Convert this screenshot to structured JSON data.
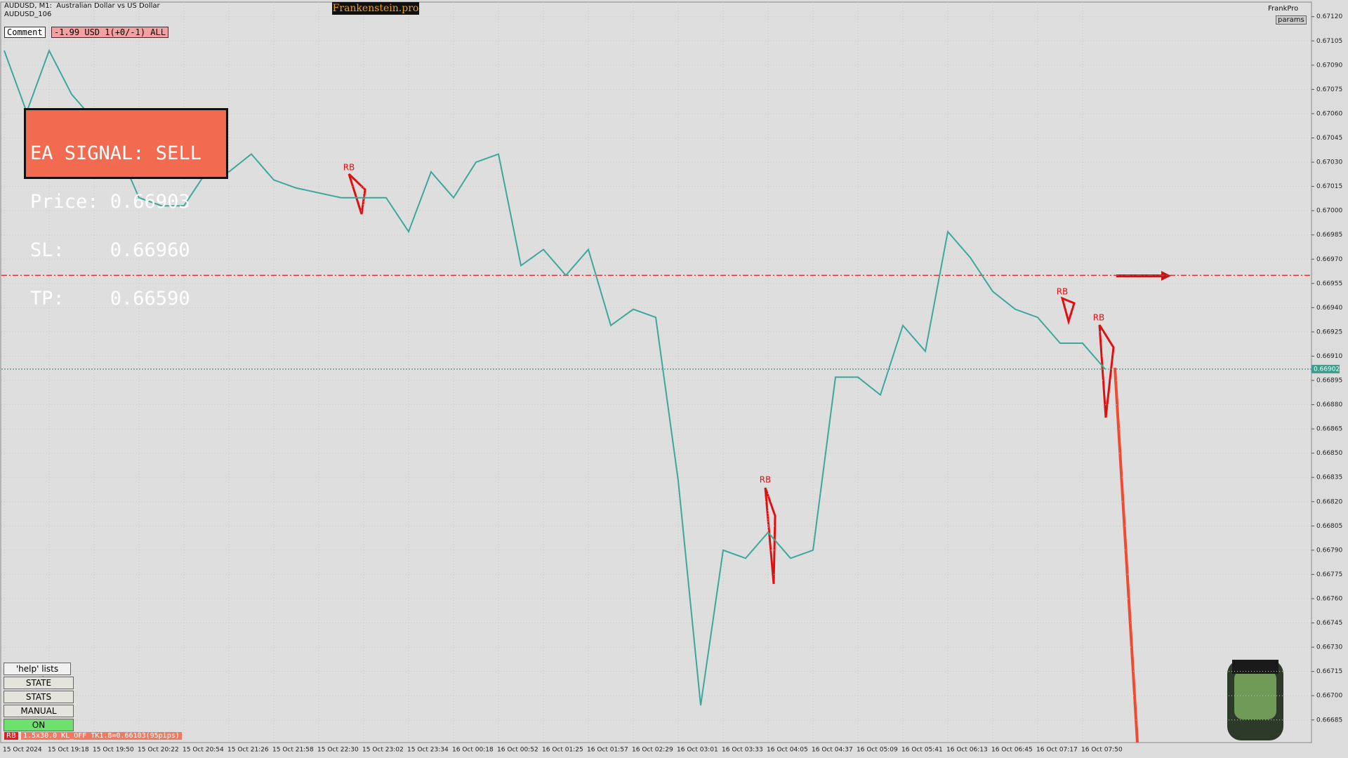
{
  "header": {
    "symbol": "AUDUSD, M1:  Australian Dollar vs US Dollar",
    "account": "AUDUSD_106",
    "brand": "Frankenstein.pro",
    "profile": "FrankPro",
    "params": "params"
  },
  "comment": {
    "label": "Comment",
    "text": "-1.99 USD 1(+0/-1) ALL"
  },
  "signal": {
    "lines": [
      "EA SIGNAL: SELL",
      "Price: 0.66903",
      "SL:    0.66960",
      "TP:    0.66590"
    ]
  },
  "controls": {
    "help": "'help' lists cmds",
    "buttons": [
      "STATE",
      "STATS",
      "MANUAL",
      "ON"
    ]
  },
  "status": {
    "tag": "RB",
    "text": "1.5x30.0 KL_OFF TK1.8=0.66103(95pips)"
  },
  "chart_data": {
    "type": "line",
    "color": "#3aa99a",
    "grid": true,
    "categories": [
      "15 Oct 2024",
      null,
      "15 Oct 19:18",
      null,
      "15 Oct 19:50",
      null,
      "15 Oct 20:22",
      null,
      "15 Oct 20:54",
      null,
      "15 Oct 21:26",
      null,
      "15 Oct 21:58",
      null,
      "15 Oct 22:30",
      null,
      "15 Oct 23:02",
      null,
      "15 Oct 23:34",
      null,
      "16 Oct 00:18",
      null,
      "16 Oct 00:52",
      null,
      "16 Oct 01:25",
      null,
      "16 Oct 01:57",
      null,
      "16 Oct 02:29",
      null,
      "16 Oct 03:01",
      null,
      "16 Oct 03:33",
      null,
      "16 Oct 04:05",
      null,
      "16 Oct 04:37",
      null,
      "16 Oct 05:09",
      null,
      "16 Oct 05:41",
      null,
      "16 Oct 06:13",
      null,
      "16 Oct 06:45",
      null,
      "16 Oct 07:17",
      null,
      "16 Oct 07:50",
      null
    ],
    "values": [
      0.67099,
      0.67061,
      0.67099,
      0.67072,
      0.67056,
      0.6704,
      0.67008,
      0.67003,
      0.67003,
      0.67024,
      0.67024,
      0.67035,
      0.67019,
      0.67014,
      0.67011,
      0.67008,
      0.67008,
      0.67008,
      0.66987,
      0.67024,
      0.67008,
      0.6703,
      0.67035,
      0.66966,
      0.66976,
      0.6696,
      0.66976,
      0.66929,
      0.66939,
      0.66934,
      0.66833,
      0.66694,
      0.6679,
      0.66785,
      0.66801,
      0.66785,
      0.6679,
      0.66897,
      0.66897,
      0.66886,
      0.66929,
      0.66913,
      0.66987,
      0.66971,
      0.6695,
      0.66939,
      0.66934,
      0.66918,
      0.66918,
      0.66902
    ],
    "ylim": [
      0.66671,
      0.67129
    ],
    "yticks": [
      {
        "value": 0.6712,
        "label": "0.67120"
      },
      {
        "value": 0.67105,
        "label": "0.67105"
      },
      {
        "value": 0.6709,
        "label": "0.67090"
      },
      {
        "value": 0.67075,
        "label": "0.67075"
      },
      {
        "value": 0.6706,
        "label": "0.67060"
      },
      {
        "value": 0.67045,
        "label": "0.67045"
      },
      {
        "value": 0.6703,
        "label": "0.67030"
      },
      {
        "value": 0.67015,
        "label": "0.67015"
      },
      {
        "value": 0.67,
        "label": "0.67000"
      },
      {
        "value": 0.66985,
        "label": "0.66985"
      },
      {
        "value": 0.6697,
        "label": "0.66970"
      },
      {
        "value": 0.66955,
        "label": "0.66955"
      },
      {
        "value": 0.6694,
        "label": "0.66940"
      },
      {
        "value": 0.66925,
        "label": "0.66925"
      },
      {
        "value": 0.6691,
        "label": "0.66910"
      },
      {
        "value": 0.66895,
        "label": "0.66895"
      },
      {
        "value": 0.6688,
        "label": "0.66880"
      },
      {
        "value": 0.66865,
        "label": "0.66865"
      },
      {
        "value": 0.6685,
        "label": "0.66850"
      },
      {
        "value": 0.66835,
        "label": "0.66835"
      },
      {
        "value": 0.6682,
        "label": "0.66820"
      },
      {
        "value": 0.66805,
        "label": "0.66805"
      },
      {
        "value": 0.6679,
        "label": "0.66790"
      },
      {
        "value": 0.66775,
        "label": "0.66775"
      },
      {
        "value": 0.6676,
        "label": "0.66760"
      },
      {
        "value": 0.66745,
        "label": "0.66745"
      },
      {
        "value": 0.6673,
        "label": "0.66730"
      },
      {
        "value": 0.66715,
        "label": "0.66715"
      },
      {
        "value": 0.667,
        "label": "0.66700"
      },
      {
        "value": 0.66685,
        "label": "0.66685"
      }
    ],
    "sl_line": {
      "value": 0.6696,
      "color": "#e03030"
    },
    "current_price": {
      "value": 0.66902,
      "label": "0.66902",
      "color": "#3a9e8a"
    },
    "pattern_labels": [
      "RB",
      "RB",
      "RB",
      "RB"
    ]
  }
}
